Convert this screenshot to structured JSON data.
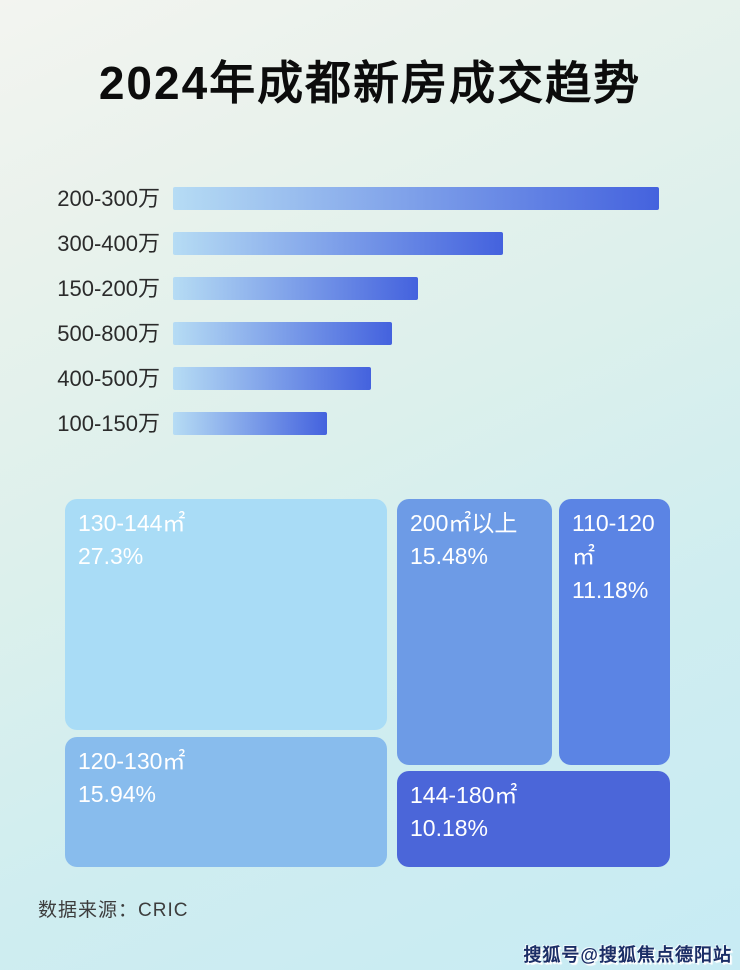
{
  "page": {
    "title": "2024年成都新房成交趋势",
    "footer": {
      "source_label": "数据来源：CRIC"
    },
    "watermark": "搜狐号@搜狐焦点德阳站",
    "background_colors": {
      "top_left": "#f3f4f0",
      "middle": "#dcf0ec",
      "bottom_right": "#c7ebf4"
    }
  },
  "bar_chart": {
    "bar_color_start": "#b6dcf4",
    "bar_color_end": "#4462de",
    "rows": [
      {
        "label": "200-300万",
        "value_pct_of_max": 100
      },
      {
        "label": "300-400万",
        "value_pct_of_max": 67.9
      },
      {
        "label": "150-200万",
        "value_pct_of_max": 50.4
      },
      {
        "label": "500-800万",
        "value_pct_of_max": 45.1
      },
      {
        "label": "400-500万",
        "value_pct_of_max": 40.7
      },
      {
        "label": "100-150万",
        "value_pct_of_max": 31.7
      }
    ]
  },
  "treemap": {
    "blocks": [
      {
        "label": "130-144㎡",
        "pct_label": "27.3%",
        "value": 27.3,
        "color": "#a9dcf6"
      },
      {
        "label": "120-130㎡",
        "pct_label": "15.94%",
        "value": 15.94,
        "color": "#88bced"
      },
      {
        "label": "200㎡以上",
        "pct_label": "15.48%",
        "value": 15.48,
        "color": "#6d9be6"
      },
      {
        "label": "110-120㎡",
        "pct_label": "11.18%",
        "value": 11.18,
        "color": "#5b84e4"
      },
      {
        "label": "144-180㎡",
        "pct_label": "10.18%",
        "value": 10.18,
        "color": "#4b66d9"
      }
    ]
  },
  "chart_data": [
    {
      "type": "bar",
      "orientation": "horizontal",
      "title": "2024年成都新房成交趋势",
      "categories": [
        "200-300万",
        "300-400万",
        "150-200万",
        "500-800万",
        "400-500万",
        "100-150万"
      ],
      "values": [
        100,
        67.9,
        50.4,
        45.1,
        40.7,
        31.7
      ],
      "value_unit": "percent of longest bar (no numeric axis shown in image)",
      "xlabel": "",
      "ylabel": "",
      "grid": false,
      "legend": false
    },
    {
      "type": "treemap",
      "unit": "%",
      "items": [
        {
          "label": "130-144㎡",
          "value": 27.3
        },
        {
          "label": "120-130㎡",
          "value": 15.94
        },
        {
          "label": "200㎡以上",
          "value": 15.48
        },
        {
          "label": "110-120㎡",
          "value": 11.18
        },
        {
          "label": "144-180㎡",
          "value": 10.18
        }
      ]
    }
  ]
}
